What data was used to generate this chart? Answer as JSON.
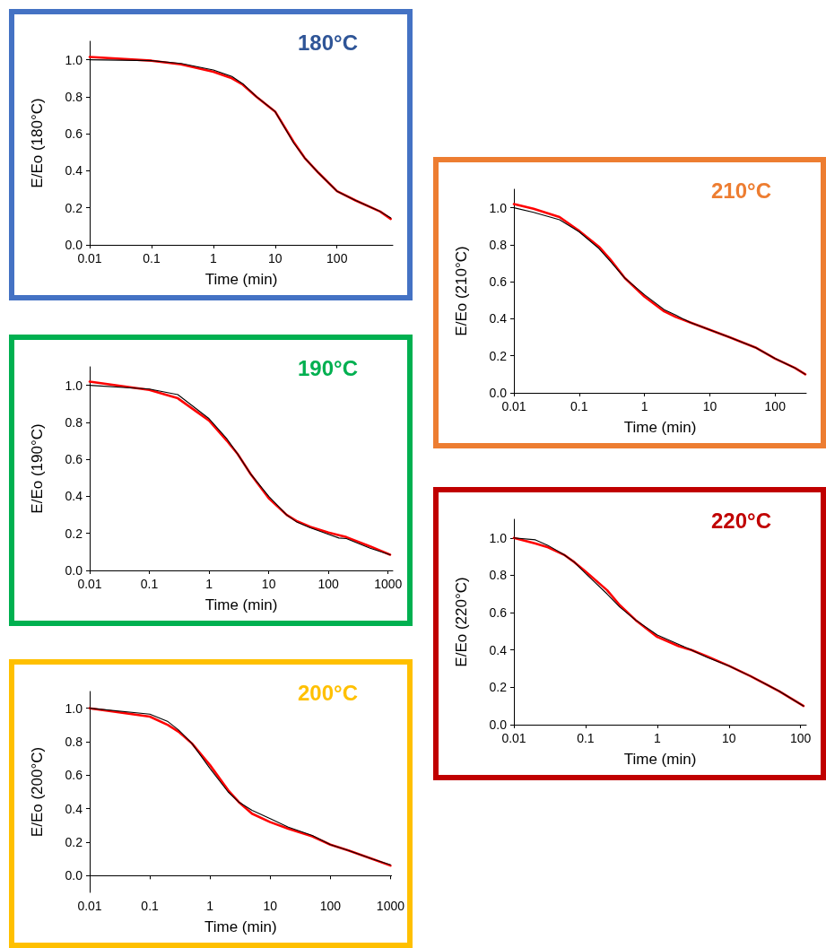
{
  "chart_data": [
    {
      "type": "line",
      "title": "180°C",
      "xlabel": "Time (min)",
      "ylabel": "E/Eo (180°C)",
      "log": "x",
      "grid": false,
      "xlim": [
        0.01,
        800
      ],
      "xticks": [
        0.01,
        0.1,
        1,
        10,
        100
      ],
      "ylim": [
        0,
        1.1
      ],
      "yticks": [
        {
          "value": 0,
          "label": "0.0"
        },
        {
          "value": 0.2,
          "label": "0.2"
        },
        {
          "value": 0.4,
          "label": "0.4"
        },
        {
          "value": 0.6,
          "label": "0.6"
        },
        {
          "value": 0.8,
          "label": "0.8"
        },
        {
          "value": 1,
          "label": "1.0"
        }
      ],
      "x": [
        0.01,
        0.1,
        0.3,
        1,
        2,
        3,
        5,
        10,
        20,
        30,
        50,
        100,
        200,
        500,
        740
      ],
      "series": [
        {
          "color": "#ff0000",
          "values": [
            1.015,
            0.995,
            0.975,
            0.935,
            0.9,
            0.865,
            0.8,
            0.72,
            0.555,
            0.47,
            0.39,
            0.29,
            0.24,
            0.18,
            0.14
          ]
        },
        {
          "color": "#000000",
          "values": [
            1.0,
            0.995,
            0.98,
            0.945,
            0.91,
            0.87,
            0.8,
            0.72,
            0.55,
            0.47,
            0.39,
            0.29,
            0.24,
            0.18,
            0.145
          ]
        }
      ]
    },
    {
      "type": "line",
      "title": "190°C",
      "xlabel": "Time (min)",
      "ylabel": "E/Eo (190°C)",
      "log": "x",
      "grid": false,
      "xlim": [
        0.01,
        1200
      ],
      "xticks": [
        0.01,
        0.1,
        1,
        10,
        100,
        1000
      ],
      "ylim": [
        0,
        1.1
      ],
      "yticks": [
        {
          "value": 0,
          "label": "0.0"
        },
        {
          "value": 0.2,
          "label": "0.2"
        },
        {
          "value": 0.4,
          "label": "0.4"
        },
        {
          "value": 0.6,
          "label": "0.6"
        },
        {
          "value": 0.8,
          "label": "0.8"
        },
        {
          "value": 1,
          "label": "1.0"
        }
      ],
      "x": [
        0.01,
        0.1,
        0.3,
        1,
        2,
        3,
        5,
        10,
        20,
        30,
        50,
        100,
        150,
        200,
        500,
        1080
      ],
      "series": [
        {
          "color": "#ff0000",
          "values": [
            1.02,
            0.975,
            0.93,
            0.81,
            0.7,
            0.63,
            0.52,
            0.39,
            0.3,
            0.265,
            0.235,
            0.205,
            0.19,
            0.18,
            0.13,
            0.085
          ]
        },
        {
          "color": "#000000",
          "values": [
            1.0,
            0.98,
            0.95,
            0.82,
            0.71,
            0.63,
            0.52,
            0.4,
            0.3,
            0.26,
            0.23,
            0.195,
            0.175,
            0.172,
            0.12,
            0.085
          ]
        }
      ]
    },
    {
      "type": "line",
      "title": "200°C",
      "xlabel": "Time (min)",
      "ylabel": "E/Eo (200°C)",
      "log": "x",
      "grid": false,
      "xlim": [
        0.01,
        1040
      ],
      "xticks": [
        0.01,
        0.1,
        1,
        10,
        100,
        1000
      ],
      "ylim": [
        -0.1,
        1.1
      ],
      "yticks": [
        {
          "value": 0,
          "label": "0.0"
        },
        {
          "value": 0.2,
          "label": "0.2"
        },
        {
          "value": 0.4,
          "label": "0.4"
        },
        {
          "value": 0.6,
          "label": "0.6"
        },
        {
          "value": 0.8,
          "label": "0.8"
        },
        {
          "value": 1,
          "label": "1.0"
        }
      ],
      "x": [
        0.01,
        0.1,
        0.2,
        0.3,
        0.5,
        1,
        2,
        3,
        5,
        10,
        20,
        50,
        100,
        200,
        500,
        1000
      ],
      "series": [
        {
          "color": "#ff0000",
          "values": [
            1.0,
            0.95,
            0.9,
            0.86,
            0.79,
            0.66,
            0.51,
            0.44,
            0.37,
            0.32,
            0.28,
            0.235,
            0.185,
            0.15,
            0.1,
            0.06
          ]
        },
        {
          "color": "#000000",
          "values": [
            1.0,
            0.965,
            0.92,
            0.87,
            0.79,
            0.64,
            0.5,
            0.44,
            0.39,
            0.34,
            0.29,
            0.24,
            0.185,
            0.15,
            0.1,
            0.065
          ]
        }
      ]
    },
    {
      "type": "line",
      "title": "210°C",
      "xlabel": "Time (min)",
      "ylabel": "E/Eo (210°C)",
      "log": "x",
      "grid": false,
      "xlim": [
        0.01,
        300
      ],
      "xticks": [
        0.01,
        0.1,
        1,
        10,
        100
      ],
      "ylim": [
        0,
        1.1
      ],
      "yticks": [
        {
          "value": 0,
          "label": "0.0"
        },
        {
          "value": 0.2,
          "label": "0.2"
        },
        {
          "value": 0.4,
          "label": "0.4"
        },
        {
          "value": 0.6,
          "label": "0.6"
        },
        {
          "value": 0.8,
          "label": "0.8"
        },
        {
          "value": 1,
          "label": "1.0"
        }
      ],
      "x": [
        0.01,
        0.02,
        0.05,
        0.1,
        0.2,
        0.3,
        0.5,
        1,
        2,
        3,
        5,
        10,
        20,
        50,
        100,
        200,
        290
      ],
      "series": [
        {
          "color": "#ff0000",
          "values": [
            1.02,
            0.995,
            0.95,
            0.875,
            0.79,
            0.72,
            0.62,
            0.52,
            0.44,
            0.41,
            0.38,
            0.34,
            0.3,
            0.245,
            0.185,
            0.135,
            0.1
          ]
        },
        {
          "color": "#000000",
          "values": [
            1.0,
            0.975,
            0.935,
            0.87,
            0.78,
            0.71,
            0.62,
            0.53,
            0.45,
            0.42,
            0.38,
            0.34,
            0.3,
            0.245,
            0.185,
            0.135,
            0.1
          ]
        }
      ]
    },
    {
      "type": "line",
      "title": "220°C",
      "xlabel": "Time (min)",
      "ylabel": "E/Eo (220°C)",
      "log": "x",
      "grid": false,
      "xlim": [
        0.01,
        120
      ],
      "xticks": [
        0.01,
        0.1,
        1,
        10,
        100
      ],
      "ylim": [
        0,
        1.1
      ],
      "yticks": [
        {
          "value": 0,
          "label": "0.0"
        },
        {
          "value": 0.2,
          "label": "0.2"
        },
        {
          "value": 0.4,
          "label": "0.4"
        },
        {
          "value": 0.6,
          "label": "0.6"
        },
        {
          "value": 0.8,
          "label": "0.8"
        },
        {
          "value": 1,
          "label": "1.0"
        }
      ],
      "x": [
        0.01,
        0.02,
        0.03,
        0.05,
        0.07,
        0.1,
        0.2,
        0.3,
        0.5,
        1,
        2,
        3,
        5,
        10,
        20,
        50,
        110
      ],
      "series": [
        {
          "color": "#ff0000",
          "values": [
            1.0,
            0.97,
            0.95,
            0.91,
            0.87,
            0.82,
            0.72,
            0.64,
            0.56,
            0.47,
            0.42,
            0.4,
            0.365,
            0.315,
            0.26,
            0.18,
            0.1
          ]
        },
        {
          "color": "#000000",
          "values": [
            1.0,
            0.99,
            0.96,
            0.91,
            0.87,
            0.81,
            0.7,
            0.63,
            0.56,
            0.48,
            0.43,
            0.4,
            0.36,
            0.315,
            0.26,
            0.18,
            0.1
          ]
        }
      ]
    }
  ]
}
